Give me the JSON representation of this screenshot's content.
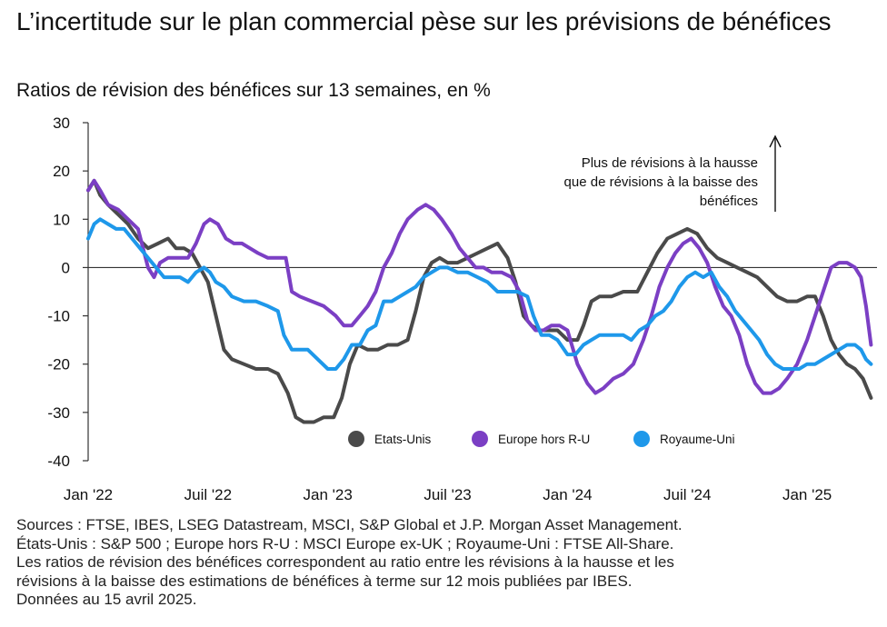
{
  "title": "L’incertitude sur le plan commercial pèse sur les prévisions de bénéfices",
  "subtitle": "Ratios de révision des bénéfices sur 13 semaines, en %",
  "annotation": {
    "lines": [
      "Plus de révisions à la hausse",
      "que de révisions à la baisse des",
      "bénéfices"
    ]
  },
  "footer": {
    "lines": [
      "Sources : FTSE, IBES, LSEG Datastream, MSCI, S&P Global et J.P. Morgan Asset Management.",
      "États-Unis : S&P 500 ; Europe hors R-U : MSCI Europe ex-UK ; Royaume-Uni : FTSE All-Share.",
      "Les ratios de révision des bénéfices correspondent au ratio entre les révisions à la hausse et les",
      "révisions à la baisse des estimations de bénéfices à terme sur 12 mois publiées par IBES.",
      "Données au 15 avril 2025."
    ]
  },
  "chart_data": {
    "type": "line",
    "title": "L’incertitude sur le plan commercial pèse sur les prévisions de bénéfices",
    "ylabel": "Ratios de révision des bénéfices sur 13 semaines, en %",
    "xlabel": "",
    "ylim": [
      -40,
      30
    ],
    "yticks": [
      30,
      20,
      10,
      0,
      -10,
      -20,
      -30,
      -40
    ],
    "xlim": [
      0,
      39.5
    ],
    "x_unit": "months since Jan 2022",
    "xticks": [
      {
        "label": "Jan '22",
        "x": 0
      },
      {
        "label": "Juil '22",
        "x": 6
      },
      {
        "label": "Jan '23",
        "x": 12
      },
      {
        "label": "Juil '23",
        "x": 18
      },
      {
        "label": "Jan '24",
        "x": 24
      },
      {
        "label": "Juil '24",
        "x": 30
      },
      {
        "label": "Jan '25",
        "x": 36
      }
    ],
    "grid": false,
    "legend_position": "bottom-right",
    "series": [
      {
        "name": "Etats-Unis",
        "color": "#4a4a4a",
        "points": [
          [
            0,
            16
          ],
          [
            0.3,
            18
          ],
          [
            0.6,
            15
          ],
          [
            1,
            13
          ],
          [
            1.5,
            11
          ],
          [
            2,
            9
          ],
          [
            2.5,
            6
          ],
          [
            3,
            4
          ],
          [
            3.5,
            5
          ],
          [
            4,
            6
          ],
          [
            4.4,
            4
          ],
          [
            4.8,
            4
          ],
          [
            5.2,
            3
          ],
          [
            5.6,
            0
          ],
          [
            6,
            -3
          ],
          [
            6.4,
            -10
          ],
          [
            6.8,
            -17
          ],
          [
            7.2,
            -19
          ],
          [
            7.8,
            -20
          ],
          [
            8.4,
            -21
          ],
          [
            9,
            -21
          ],
          [
            9.5,
            -22
          ],
          [
            10,
            -26
          ],
          [
            10.4,
            -31
          ],
          [
            10.8,
            -32
          ],
          [
            11.3,
            -32
          ],
          [
            11.8,
            -31
          ],
          [
            12.3,
            -31
          ],
          [
            12.7,
            -27
          ],
          [
            13.1,
            -20
          ],
          [
            13.5,
            -16
          ],
          [
            14,
            -17
          ],
          [
            14.5,
            -17
          ],
          [
            15,
            -16
          ],
          [
            15.5,
            -16
          ],
          [
            16,
            -15
          ],
          [
            16.4,
            -9
          ],
          [
            16.8,
            -2
          ],
          [
            17.2,
            1
          ],
          [
            17.6,
            2
          ],
          [
            18,
            1
          ],
          [
            18.5,
            1
          ],
          [
            19,
            2
          ],
          [
            19.5,
            3
          ],
          [
            20,
            4
          ],
          [
            20.5,
            5
          ],
          [
            21,
            2
          ],
          [
            21.4,
            -3
          ],
          [
            21.8,
            -10
          ],
          [
            22.2,
            -12
          ],
          [
            22.6,
            -13
          ],
          [
            23,
            -13
          ],
          [
            23.5,
            -13
          ],
          [
            24,
            -15
          ],
          [
            24.5,
            -15
          ],
          [
            24.8,
            -12
          ],
          [
            25.2,
            -7
          ],
          [
            25.6,
            -6
          ],
          [
            26.2,
            -6
          ],
          [
            26.8,
            -5
          ],
          [
            27.5,
            -5
          ],
          [
            28,
            -1
          ],
          [
            28.5,
            3
          ],
          [
            29,
            6
          ],
          [
            29.5,
            7
          ],
          [
            30,
            8
          ],
          [
            30.5,
            7
          ],
          [
            31,
            4
          ],
          [
            31.5,
            2
          ],
          [
            32,
            1
          ],
          [
            32.5,
            0
          ],
          [
            33,
            -1
          ],
          [
            33.5,
            -2
          ],
          [
            34,
            -4
          ],
          [
            34.5,
            -6
          ],
          [
            35,
            -7
          ],
          [
            35.5,
            -7
          ],
          [
            36,
            -6
          ],
          [
            36.4,
            -6
          ],
          [
            36.8,
            -10
          ],
          [
            37.2,
            -15
          ],
          [
            37.6,
            -18
          ],
          [
            38,
            -20
          ],
          [
            38.4,
            -21
          ],
          [
            38.8,
            -23
          ],
          [
            39.2,
            -27
          ]
        ]
      },
      {
        "name": "Europe hors R-U",
        "color": "#7b3fc4",
        "points": [
          [
            0,
            16
          ],
          [
            0.3,
            18
          ],
          [
            0.6,
            16
          ],
          [
            1,
            13
          ],
          [
            1.5,
            12
          ],
          [
            2,
            10
          ],
          [
            2.5,
            8
          ],
          [
            3,
            0
          ],
          [
            3.3,
            -2
          ],
          [
            3.6,
            1
          ],
          [
            4,
            2
          ],
          [
            4.5,
            2
          ],
          [
            5,
            2
          ],
          [
            5.4,
            5
          ],
          [
            5.8,
            9
          ],
          [
            6.1,
            10
          ],
          [
            6.5,
            9
          ],
          [
            6.9,
            6
          ],
          [
            7.3,
            5
          ],
          [
            7.7,
            5
          ],
          [
            8.1,
            4
          ],
          [
            8.5,
            3
          ],
          [
            9,
            2
          ],
          [
            9.5,
            2
          ],
          [
            9.9,
            2
          ],
          [
            10.2,
            -5
          ],
          [
            10.6,
            -6
          ],
          [
            11.2,
            -7
          ],
          [
            11.8,
            -8
          ],
          [
            12.4,
            -10
          ],
          [
            12.8,
            -12
          ],
          [
            13.2,
            -12
          ],
          [
            13.6,
            -10
          ],
          [
            14,
            -8
          ],
          [
            14.4,
            -5
          ],
          [
            14.8,
            0
          ],
          [
            15.2,
            3
          ],
          [
            15.6,
            7
          ],
          [
            16,
            10
          ],
          [
            16.5,
            12
          ],
          [
            16.9,
            13
          ],
          [
            17.3,
            12
          ],
          [
            17.7,
            10
          ],
          [
            18.2,
            7
          ],
          [
            18.6,
            4
          ],
          [
            19,
            2
          ],
          [
            19.4,
            0
          ],
          [
            19.8,
            0
          ],
          [
            20.2,
            -1
          ],
          [
            20.7,
            -1
          ],
          [
            21.2,
            -2
          ],
          [
            21.6,
            -5
          ],
          [
            22,
            -11
          ],
          [
            22.4,
            -13
          ],
          [
            22.8,
            -13
          ],
          [
            23.2,
            -12
          ],
          [
            23.6,
            -12
          ],
          [
            24,
            -13
          ],
          [
            24.5,
            -20
          ],
          [
            25,
            -24
          ],
          [
            25.4,
            -26
          ],
          [
            25.8,
            -25
          ],
          [
            26.3,
            -23
          ],
          [
            26.8,
            -22
          ],
          [
            27.3,
            -20
          ],
          [
            27.8,
            -15
          ],
          [
            28.2,
            -10
          ],
          [
            28.6,
            -4
          ],
          [
            29,
            0
          ],
          [
            29.4,
            3
          ],
          [
            29.8,
            5
          ],
          [
            30.2,
            6
          ],
          [
            30.6,
            4
          ],
          [
            31,
            1
          ],
          [
            31.4,
            -4
          ],
          [
            31.8,
            -8
          ],
          [
            32.2,
            -10
          ],
          [
            32.6,
            -14
          ],
          [
            33,
            -20
          ],
          [
            33.4,
            -24
          ],
          [
            33.8,
            -26
          ],
          [
            34.2,
            -26
          ],
          [
            34.6,
            -25
          ],
          [
            35,
            -23
          ],
          [
            35.5,
            -20
          ],
          [
            36,
            -15
          ],
          [
            36.4,
            -10
          ],
          [
            36.8,
            -5
          ],
          [
            37.2,
            0
          ],
          [
            37.6,
            1
          ],
          [
            38,
            1
          ],
          [
            38.4,
            0
          ],
          [
            38.7,
            -2
          ],
          [
            38.95,
            -8
          ],
          [
            39.2,
            -16
          ]
        ]
      },
      {
        "name": "Royaume-Uni",
        "color": "#1e98ea",
        "points": [
          [
            0,
            6
          ],
          [
            0.3,
            9
          ],
          [
            0.6,
            10
          ],
          [
            1,
            9
          ],
          [
            1.4,
            8
          ],
          [
            1.8,
            8
          ],
          [
            2.2,
            6
          ],
          [
            2.6,
            4
          ],
          [
            3,
            2
          ],
          [
            3.4,
            0
          ],
          [
            3.8,
            -2
          ],
          [
            4.2,
            -2
          ],
          [
            4.6,
            -2
          ],
          [
            5,
            -3
          ],
          [
            5.4,
            -1
          ],
          [
            5.8,
            0
          ],
          [
            6.1,
            -1
          ],
          [
            6.4,
            -3
          ],
          [
            6.8,
            -4
          ],
          [
            7.2,
            -6
          ],
          [
            7.8,
            -7
          ],
          [
            8.4,
            -7
          ],
          [
            9,
            -8
          ],
          [
            9.5,
            -9
          ],
          [
            9.8,
            -14
          ],
          [
            10.2,
            -17
          ],
          [
            10.6,
            -17
          ],
          [
            11,
            -17
          ],
          [
            11.5,
            -19
          ],
          [
            12,
            -21
          ],
          [
            12.4,
            -21
          ],
          [
            12.8,
            -19
          ],
          [
            13.2,
            -16
          ],
          [
            13.6,
            -16
          ],
          [
            14,
            -13
          ],
          [
            14.4,
            -12
          ],
          [
            14.8,
            -7
          ],
          [
            15.2,
            -7
          ],
          [
            15.6,
            -6
          ],
          [
            16,
            -5
          ],
          [
            16.4,
            -4
          ],
          [
            16.8,
            -2
          ],
          [
            17.2,
            -1
          ],
          [
            17.6,
            0
          ],
          [
            18,
            0
          ],
          [
            18.5,
            -1
          ],
          [
            19,
            -1
          ],
          [
            19.5,
            -2
          ],
          [
            20,
            -3
          ],
          [
            20.5,
            -5
          ],
          [
            21,
            -5
          ],
          [
            21.5,
            -5
          ],
          [
            22,
            -6
          ],
          [
            22.3,
            -10
          ],
          [
            22.7,
            -14
          ],
          [
            23.1,
            -14
          ],
          [
            23.5,
            -15
          ],
          [
            24,
            -18
          ],
          [
            24.4,
            -18
          ],
          [
            24.8,
            -16
          ],
          [
            25.2,
            -15
          ],
          [
            25.6,
            -14
          ],
          [
            26,
            -14
          ],
          [
            26.4,
            -14
          ],
          [
            26.8,
            -14
          ],
          [
            27.2,
            -15
          ],
          [
            27.6,
            -13
          ],
          [
            28,
            -12
          ],
          [
            28.4,
            -10
          ],
          [
            28.8,
            -9
          ],
          [
            29.2,
            -7
          ],
          [
            29.6,
            -4
          ],
          [
            30,
            -2
          ],
          [
            30.4,
            -1
          ],
          [
            30.8,
            -2
          ],
          [
            31.2,
            -1
          ],
          [
            31.6,
            -4
          ],
          [
            32,
            -6
          ],
          [
            32.4,
            -9
          ],
          [
            32.8,
            -11
          ],
          [
            33.2,
            -13
          ],
          [
            33.6,
            -15
          ],
          [
            34,
            -18
          ],
          [
            34.4,
            -20
          ],
          [
            34.8,
            -21
          ],
          [
            35.2,
            -21
          ],
          [
            35.6,
            -21
          ],
          [
            36,
            -20
          ],
          [
            36.4,
            -20
          ],
          [
            36.8,
            -19
          ],
          [
            37.2,
            -18
          ],
          [
            37.6,
            -17
          ],
          [
            38,
            -16
          ],
          [
            38.4,
            -16
          ],
          [
            38.7,
            -17
          ],
          [
            38.95,
            -19
          ],
          [
            39.2,
            -20
          ]
        ]
      }
    ]
  }
}
